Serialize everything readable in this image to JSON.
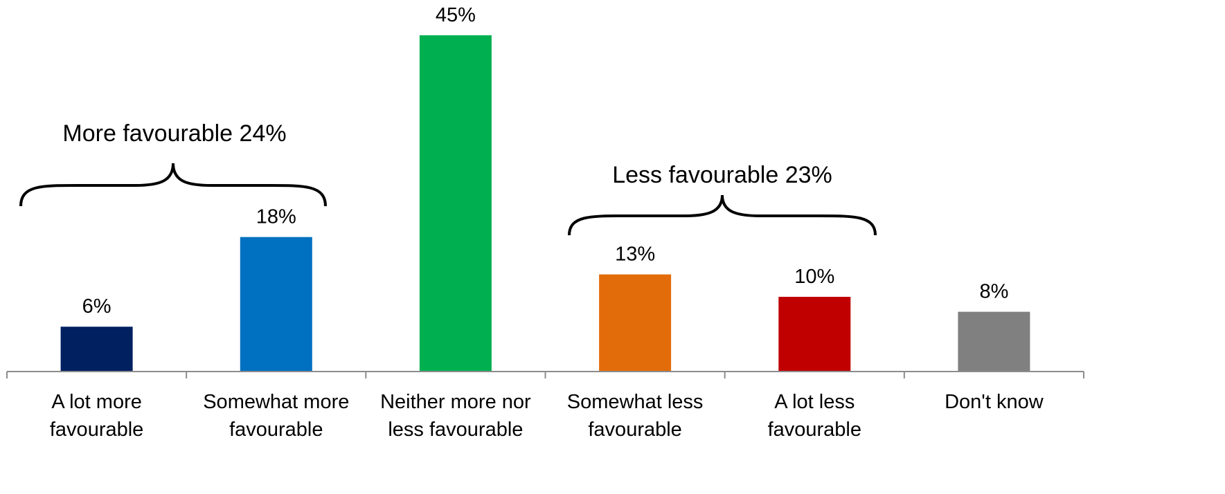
{
  "chart_data": {
    "type": "bar",
    "title": "",
    "xlabel": "",
    "ylabel": "",
    "ylim": [
      0,
      50
    ],
    "grid": false,
    "legend": "none",
    "categories": [
      [
        "A lot more",
        "favourable"
      ],
      [
        "Somewhat more",
        "favourable"
      ],
      [
        "Neither more nor",
        "less favourable"
      ],
      [
        "Somewhat less",
        "favourable"
      ],
      [
        "A lot less",
        "favourable"
      ],
      [
        "Don't know",
        ""
      ]
    ],
    "values": [
      6,
      18,
      45,
      13,
      10,
      8
    ],
    "value_labels": [
      "6%",
      "18%",
      "45%",
      "13%",
      "10%",
      "8%"
    ],
    "colors": [
      "#012060",
      "#0070c0",
      "#00b050",
      "#e36c0a",
      "#c00000",
      "#808080"
    ],
    "annotations": [
      {
        "text": "More favourable 24%",
        "span": [
          0,
          1
        ]
      },
      {
        "text": "Less favourable 23%",
        "span": [
          3,
          4
        ]
      }
    ]
  }
}
